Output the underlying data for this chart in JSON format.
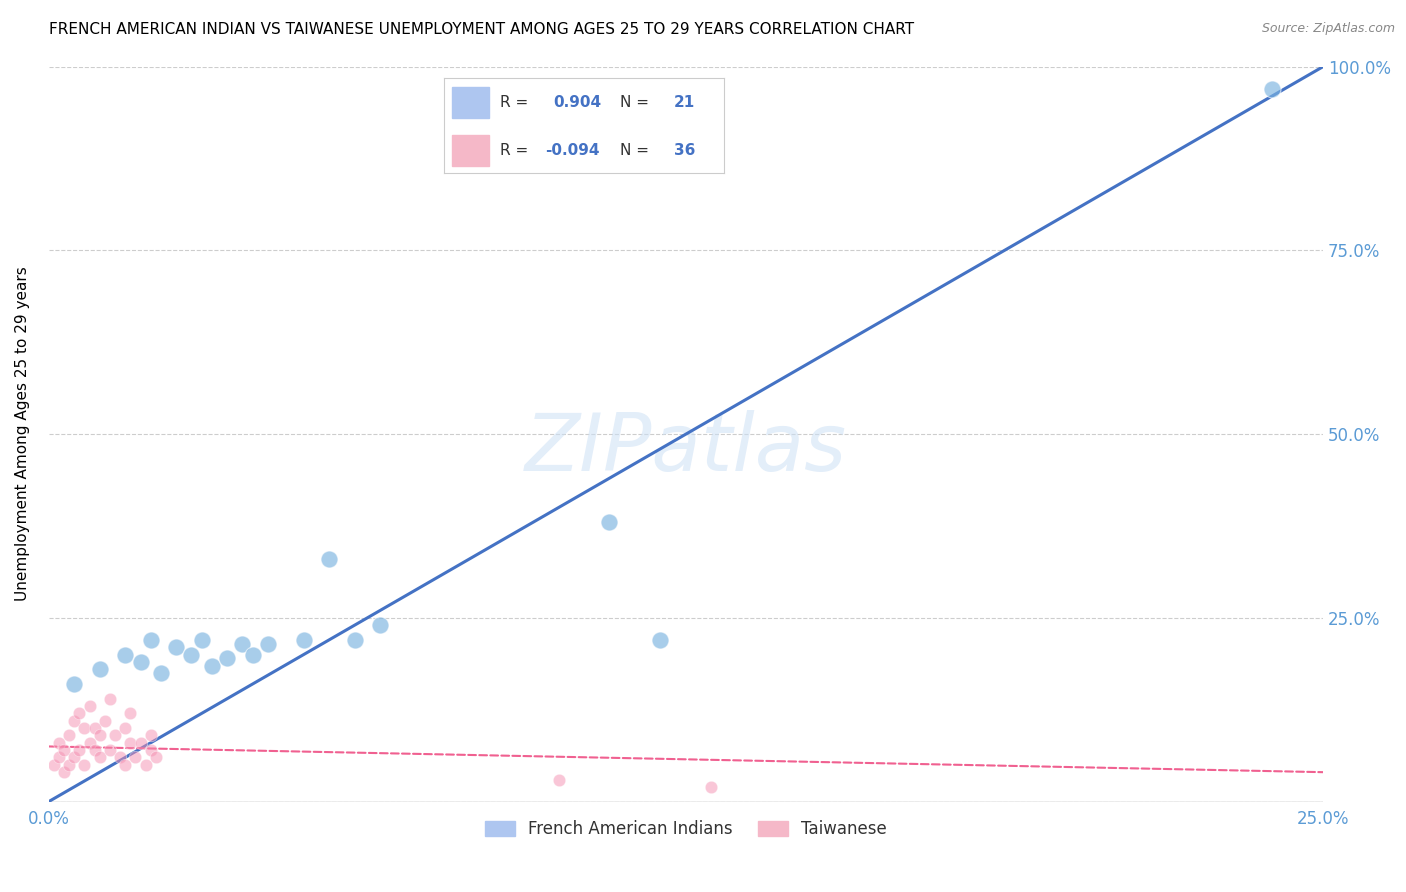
{
  "title": "FRENCH AMERICAN INDIAN VS TAIWANESE UNEMPLOYMENT AMONG AGES 25 TO 29 YEARS CORRELATION CHART",
  "source": "Source: ZipAtlas.com",
  "ylabel": "Unemployment Among Ages 25 to 29 years",
  "xlim": [
    0,
    0.25
  ],
  "ylim": [
    0,
    1.0
  ],
  "xticks": [
    0.0,
    0.05,
    0.1,
    0.15,
    0.2,
    0.25
  ],
  "yticks": [
    0.0,
    0.25,
    0.5,
    0.75,
    1.0
  ],
  "watermark": "ZIPatlas",
  "blue_scatter_x": [
    0.005,
    0.01,
    0.015,
    0.018,
    0.02,
    0.022,
    0.025,
    0.028,
    0.03,
    0.032,
    0.035,
    0.038,
    0.04,
    0.043,
    0.05,
    0.055,
    0.06,
    0.065,
    0.11,
    0.12,
    0.24
  ],
  "blue_scatter_y": [
    0.16,
    0.18,
    0.2,
    0.19,
    0.22,
    0.175,
    0.21,
    0.2,
    0.22,
    0.185,
    0.195,
    0.215,
    0.2,
    0.215,
    0.22,
    0.33,
    0.22,
    0.24,
    0.38,
    0.22,
    0.97
  ],
  "pink_scatter_x": [
    0.001,
    0.002,
    0.002,
    0.003,
    0.003,
    0.004,
    0.004,
    0.005,
    0.005,
    0.006,
    0.006,
    0.007,
    0.007,
    0.008,
    0.008,
    0.009,
    0.009,
    0.01,
    0.01,
    0.011,
    0.012,
    0.012,
    0.013,
    0.014,
    0.015,
    0.015,
    0.016,
    0.016,
    0.017,
    0.018,
    0.019,
    0.02,
    0.02,
    0.021,
    0.1,
    0.13
  ],
  "pink_scatter_y": [
    0.05,
    0.06,
    0.08,
    0.04,
    0.07,
    0.05,
    0.09,
    0.06,
    0.11,
    0.07,
    0.12,
    0.05,
    0.1,
    0.08,
    0.13,
    0.07,
    0.1,
    0.06,
    0.09,
    0.11,
    0.07,
    0.14,
    0.09,
    0.06,
    0.1,
    0.05,
    0.08,
    0.12,
    0.06,
    0.08,
    0.05,
    0.07,
    0.09,
    0.06,
    0.03,
    0.02
  ],
  "blue_line_x": [
    0.0,
    0.25
  ],
  "blue_line_y": [
    0.0,
    1.0
  ],
  "pink_line_x": [
    0.0,
    0.25
  ],
  "pink_line_y": [
    0.075,
    0.04
  ],
  "blue_color": "#7ab3e0",
  "pink_color": "#f48fb1",
  "blue_line_color": "#4472c4",
  "pink_line_color": "#f06090",
  "background_color": "#ffffff",
  "grid_color": "#c8c8c8",
  "title_fontsize": 11,
  "tick_label_color": "#5b9bd5",
  "legend_blue_color": "#aec6f0",
  "legend_pink_color": "#f5b8c8"
}
